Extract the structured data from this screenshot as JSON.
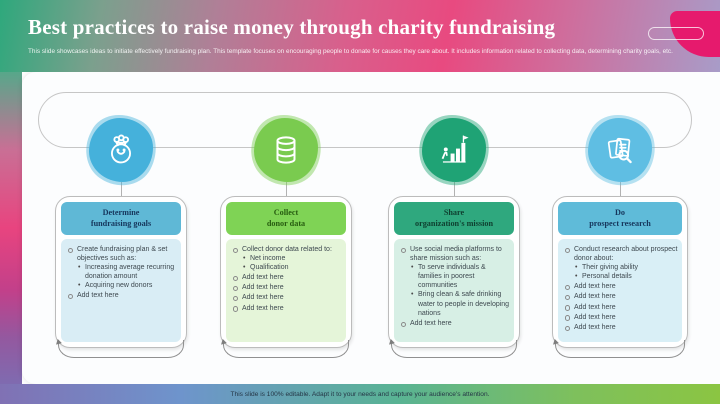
{
  "header": {
    "title": "Best practices to raise money through charity fundraising",
    "subtitle": "This slide showcases ideas to initiate effectively fundraising plan. This template focuses on encouraging people to donate for causes they care about. It includes information related to collecting data, determining charity goals, etc."
  },
  "footer": {
    "text": "This slide is 100% editable. Adapt it to your needs and capture your audience's attention."
  },
  "colors": {
    "header_gradient_left": "#2ea87c",
    "header_gradient_mid": "#e84a80",
    "header_gradient_right": "#a89cc8",
    "corner_blob": "#e61a6d",
    "footer_gradient_left": "#8071b4",
    "footer_gradient_right": "#8bc542"
  },
  "cards": [
    {
      "icon": "money-bag-icon",
      "title_line1": "Determine",
      "title_line2": "fundraising goals",
      "colors": {
        "icon_bg": "#45b1db",
        "header_bg": "#5fb8d6",
        "header_text": "#16365c",
        "body_bg": "#d9edf5"
      },
      "items": [
        {
          "text": "Create fundraising plan & set objectives such as:",
          "sub": [
            "Increasing average recurring donation amount",
            "Acquiring new donors"
          ]
        },
        {
          "text": "Add text here",
          "sub": []
        }
      ]
    },
    {
      "icon": "database-icon",
      "title_line1": "Collect",
      "title_line2": "donor data",
      "colors": {
        "icon_bg": "#7bcb4f",
        "header_bg": "#7fd355",
        "header_text": "#275c10",
        "body_bg": "#e5f5d9"
      },
      "items": [
        {
          "text": "Collect donor data related to:",
          "sub": [
            "Net income",
            "Qualification"
          ]
        },
        {
          "text": "Add text here",
          "sub": []
        },
        {
          "text": "Add text here",
          "sub": []
        },
        {
          "text": "Add text here",
          "sub": []
        },
        {
          "text": "Add text here",
          "sub": []
        }
      ]
    },
    {
      "icon": "growth-chart-icon",
      "title_line1": "Share",
      "title_line2": "organization's mission",
      "colors": {
        "icon_bg": "#1fa376",
        "header_bg": "#2fa87e",
        "header_text": "#0f4030",
        "body_bg": "#d7efe5"
      },
      "items": [
        {
          "text": "Use social media platforms to share mission such as:",
          "sub": [
            "To serve individuals & families in poorest communities",
            "Bring clean & safe drinking water to people in developing nations"
          ]
        },
        {
          "text": "Add text here",
          "sub": []
        }
      ]
    },
    {
      "icon": "prospect-research-icon",
      "title_line1": "Do",
      "title_line2": "prospect research",
      "colors": {
        "icon_bg": "#5fbee3",
        "header_bg": "#5fbbd9",
        "header_text": "#16365c",
        "body_bg": "#d9eff6"
      },
      "items": [
        {
          "text": "Conduct research about prospect donor about:",
          "sub": [
            "Their giving ability",
            "Personal details"
          ]
        },
        {
          "text": "Add text here",
          "sub": []
        },
        {
          "text": "Add text here",
          "sub": []
        },
        {
          "text": "Add text here",
          "sub": []
        },
        {
          "text": "Add text here",
          "sub": []
        },
        {
          "text": "Add text here",
          "sub": []
        }
      ]
    }
  ]
}
